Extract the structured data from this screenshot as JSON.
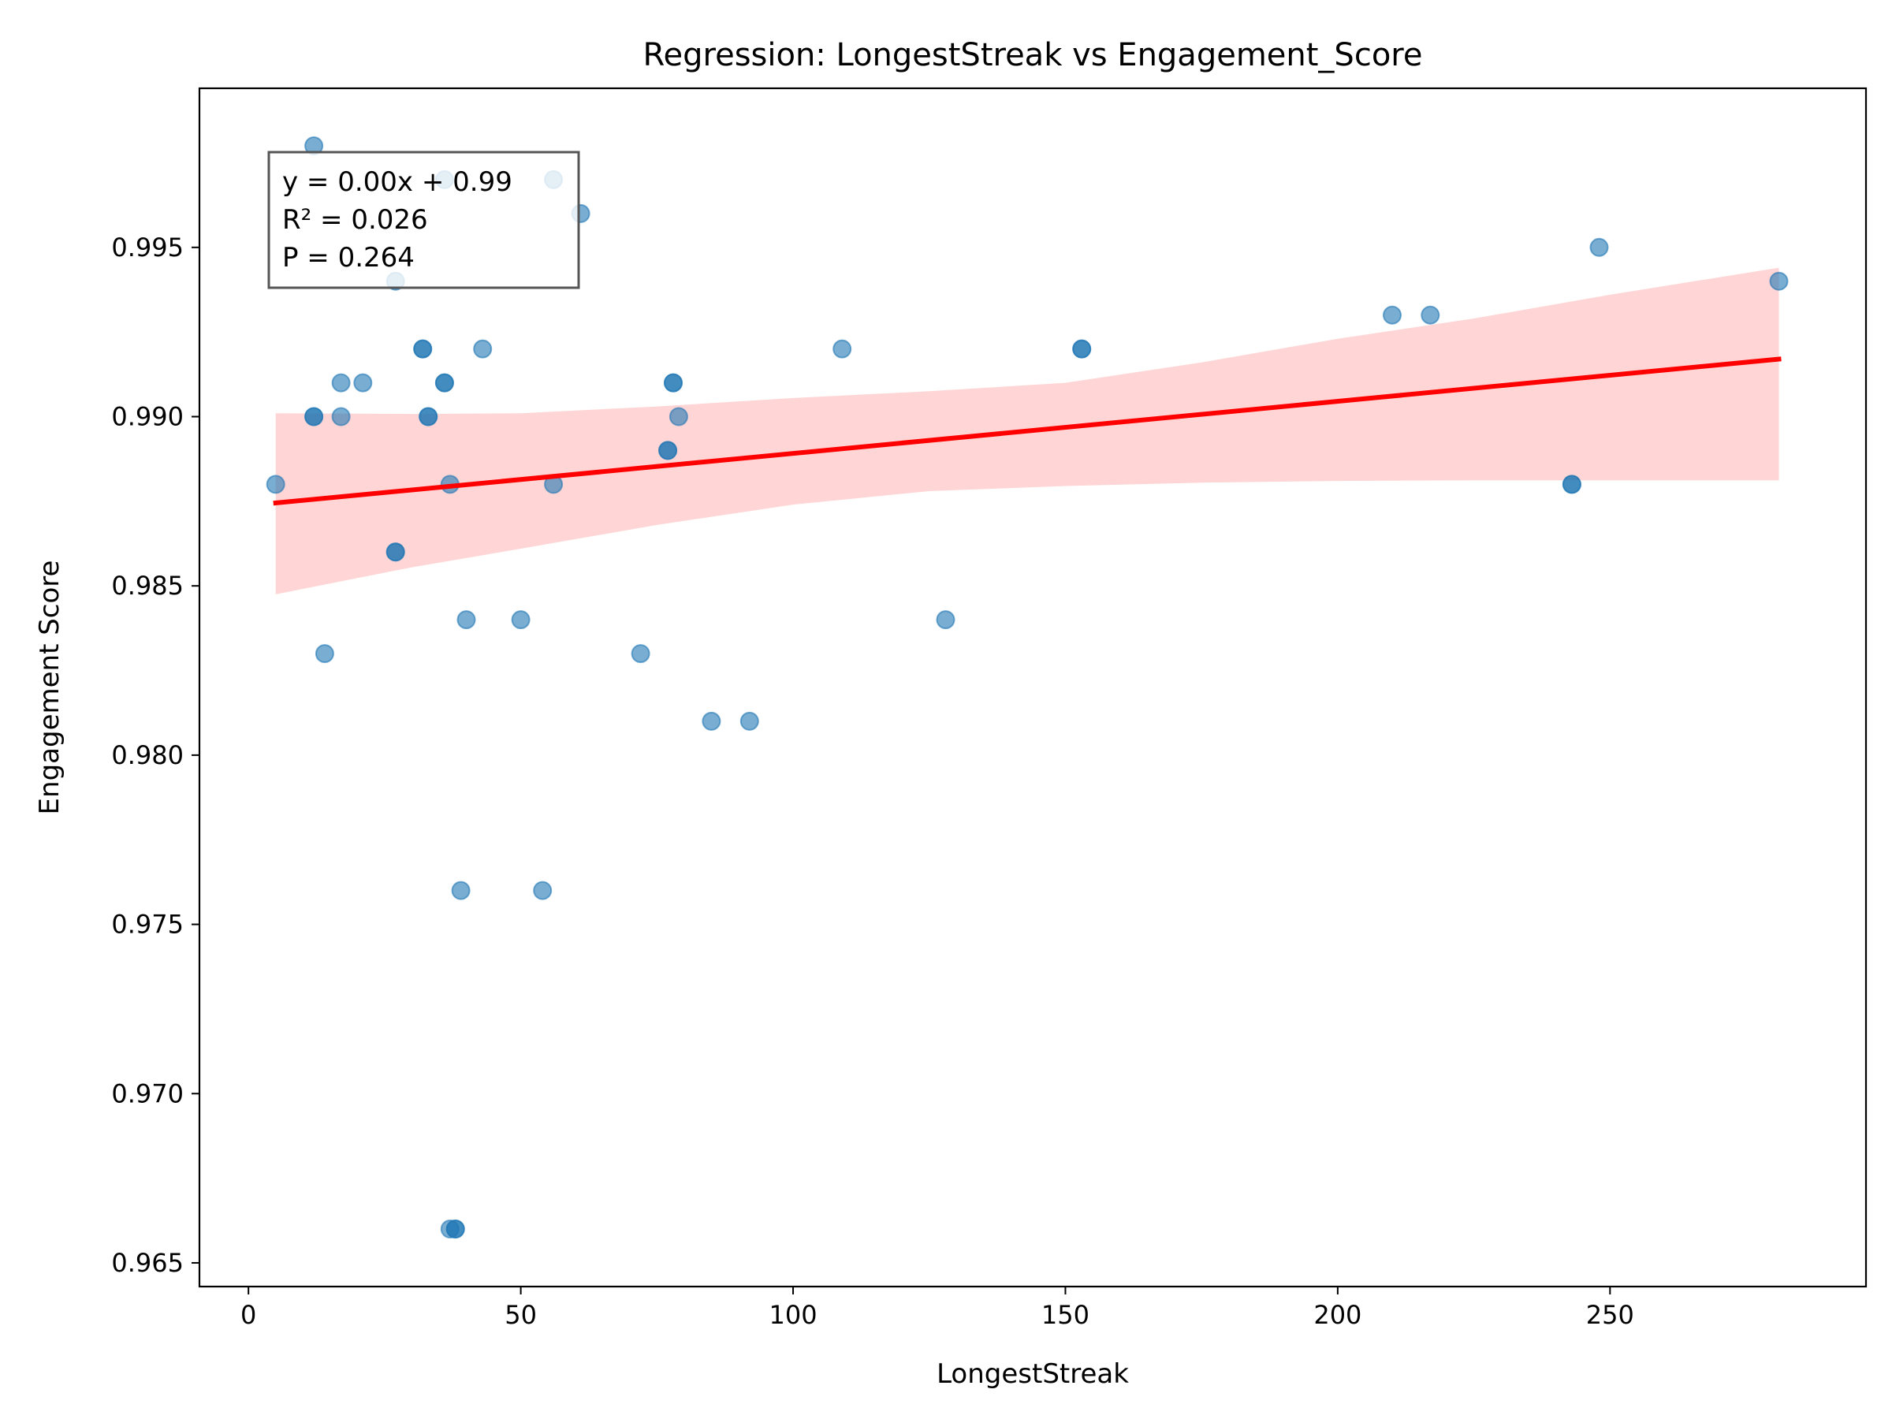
{
  "chart_data": {
    "type": "scatter",
    "title": "Regression: LongestStreak vs Engagement_Score",
    "xlabel": "LongestStreak",
    "ylabel": "Engagement Score",
    "xlim": [
      -9,
      297
    ],
    "ylim": [
      0.9643,
      0.9997
    ],
    "xticks": [
      0,
      50,
      100,
      150,
      200,
      250
    ],
    "xtick_labels": [
      "0",
      "50",
      "100",
      "150",
      "200",
      "250"
    ],
    "yticks": [
      0.965,
      0.97,
      0.975,
      0.98,
      0.985,
      0.99,
      0.995
    ],
    "ytick_labels": [
      "0.965",
      "0.970",
      "0.975",
      "0.980",
      "0.985",
      "0.990",
      "0.995"
    ],
    "grid": false,
    "points": {
      "color": "#1f77b4",
      "x": [
        5,
        12,
        12,
        12,
        14,
        17,
        17,
        21,
        27,
        27,
        27,
        32,
        32,
        33,
        33,
        36,
        36,
        36,
        37,
        37,
        38,
        38,
        39,
        40,
        43,
        50,
        54,
        56,
        56,
        61,
        72,
        77,
        77,
        78,
        78,
        79,
        85,
        92,
        109,
        128,
        153,
        153,
        210,
        217,
        243,
        243,
        248,
        281
      ],
      "y": [
        0.988,
        0.998,
        0.99,
        0.99,
        0.983,
        0.991,
        0.99,
        0.991,
        0.994,
        0.986,
        0.986,
        0.992,
        0.992,
        0.99,
        0.99,
        0.997,
        0.991,
        0.991,
        0.988,
        0.966,
        0.966,
        0.966,
        0.976,
        0.984,
        0.992,
        0.984,
        0.976,
        0.997,
        0.988,
        0.996,
        0.983,
        0.989,
        0.989,
        0.991,
        0.991,
        0.99,
        0.981,
        0.981,
        0.992,
        0.984,
        0.992,
        0.992,
        0.993,
        0.993,
        0.988,
        0.988,
        0.995,
        0.994
      ]
    },
    "regression": {
      "color": "#ff0000",
      "band_color": "#ffb3b3",
      "x_range": [
        5,
        281
      ],
      "y_start": 0.98745,
      "y_end": 0.9917,
      "band": {
        "x": [
          5,
          30,
          50,
          75,
          100,
          125,
          150,
          175,
          200,
          225,
          250,
          281
        ],
        "lower": [
          0.98475,
          0.98555,
          0.9861,
          0.9868,
          0.9874,
          0.9878,
          0.98795,
          0.98805,
          0.9881,
          0.98812,
          0.98812,
          0.98812
        ],
        "upper": [
          0.9901,
          0.99008,
          0.9901,
          0.9903,
          0.99055,
          0.99075,
          0.991,
          0.9916,
          0.9923,
          0.9929,
          0.9936,
          0.9944
        ]
      }
    },
    "annotation": {
      "lines": [
        "y = 0.00x + 0.99",
        "R² = 0.026",
        "P = 0.264"
      ],
      "placement": "top-left"
    }
  }
}
